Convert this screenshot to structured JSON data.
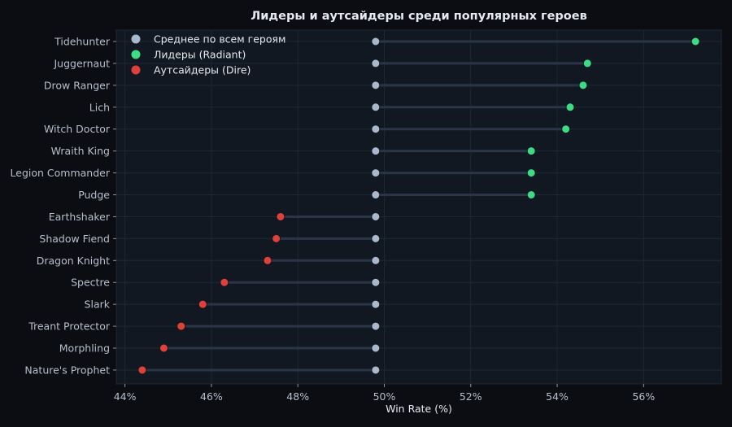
{
  "chart_data": {
    "type": "dumbbell",
    "title": "Лидеры и аутсайдеры среди популярных героев",
    "xlabel": "Win Rate (%)",
    "ylabel": "",
    "xlim": [
      43.8,
      57.8
    ],
    "xticks": [
      44,
      46,
      48,
      50,
      52,
      54,
      56
    ],
    "xtick_labels": [
      "44%",
      "46%",
      "48%",
      "50%",
      "52%",
      "54%",
      "56%"
    ],
    "average_value": 49.8,
    "categories": [
      "Tidehunter",
      "Juggernaut",
      "Drow Ranger",
      "Lich",
      "Witch Doctor",
      "Wraith King",
      "Legion Commander",
      "Pudge",
      "Earthshaker",
      "Shadow Fiend",
      "Dragon Knight",
      "Spectre",
      "Slark",
      "Treant Protector",
      "Morphling",
      "Nature's Prophet"
    ],
    "series": [
      {
        "name": "Среднее по всем героям",
        "color": "#a9b8cc",
        "values": [
          49.8,
          49.8,
          49.8,
          49.8,
          49.8,
          49.8,
          49.8,
          49.8,
          49.8,
          49.8,
          49.8,
          49.8,
          49.8,
          49.8,
          49.8,
          49.8
        ]
      },
      {
        "name": "Лидеры (Radiant)",
        "color": "#3ddc84",
        "values": [
          57.2,
          54.7,
          54.6,
          54.3,
          54.2,
          53.4,
          53.4,
          53.4,
          null,
          null,
          null,
          null,
          null,
          null,
          null,
          null
        ]
      },
      {
        "name": "Аутсайдеры (Dire)",
        "color": "#e0403a",
        "values": [
          null,
          null,
          null,
          null,
          null,
          null,
          null,
          null,
          47.6,
          47.5,
          47.3,
          46.3,
          45.8,
          45.3,
          44.9,
          44.4
        ]
      }
    ],
    "grid": true,
    "legend_position": "top-left",
    "colors": {
      "background": "#0b0d12",
      "plot_background": "#111821",
      "grid": "#1a2a33",
      "connector": "#2a3647"
    }
  }
}
